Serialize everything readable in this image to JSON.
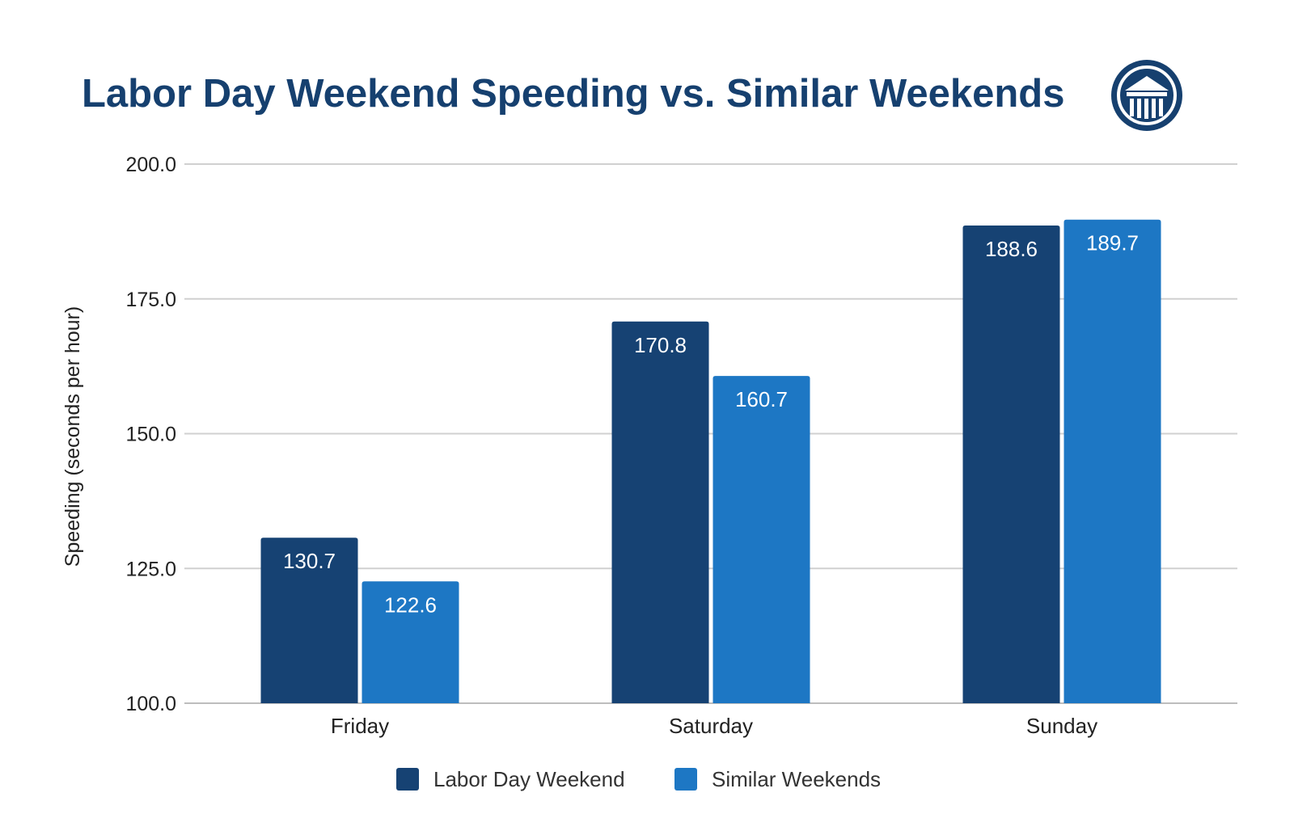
{
  "chart_data": {
    "type": "bar",
    "title": "Labor Day Weekend Speeding vs. Similar Weekends",
    "ylabel": "Speeding (seconds per hour)",
    "xlabel": "",
    "categories": [
      "Friday",
      "Saturday",
      "Sunday"
    ],
    "series": [
      {
        "name": "Labor Day Weekend",
        "values": [
          130.7,
          170.8,
          188.6
        ]
      },
      {
        "name": "Similar Weekends",
        "values": [
          122.6,
          160.7,
          189.7
        ]
      }
    ],
    "ylim": [
      100,
      200
    ],
    "yticks": [
      "100.0",
      "125.0",
      "150.0",
      "175.0",
      "200.0"
    ],
    "data_labels": [
      [
        "130.7",
        "170.8",
        "188.6"
      ],
      [
        "122.6",
        "160.7",
        "189.7"
      ]
    ],
    "grid": true,
    "legend_position": "bottom"
  },
  "colors": {
    "title": "#16406f",
    "series": [
      "#164273",
      "#1d77c4"
    ],
    "grid": "#d0d0d0",
    "logo": "#16406f"
  },
  "logo": {
    "icon": "columned-building-logo-icon"
  }
}
